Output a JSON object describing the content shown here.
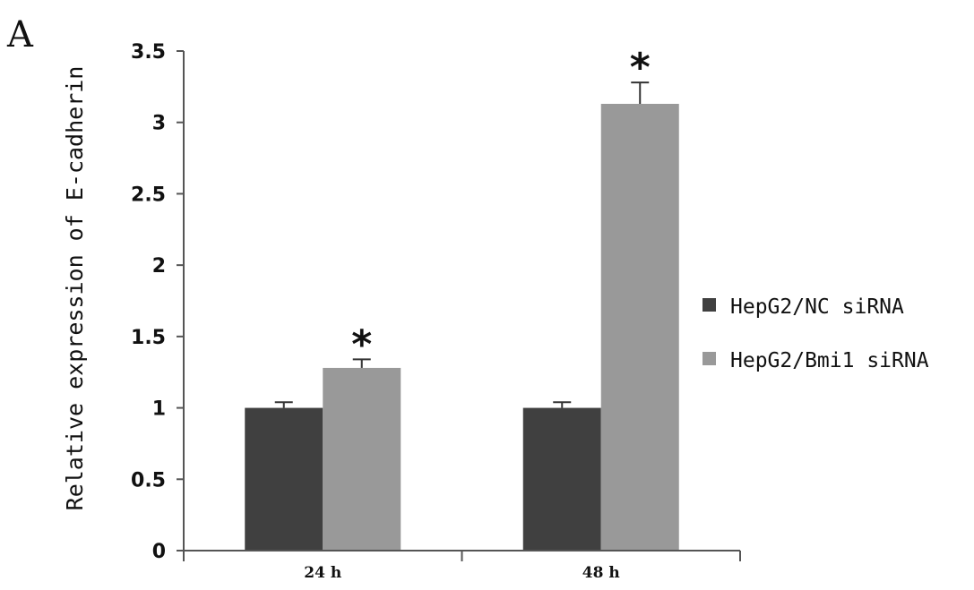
{
  "panel_label": "A",
  "chart_data": {
    "type": "bar",
    "title": "",
    "xlabel": "",
    "ylabel": "Relative expression of E-cadherin",
    "ylim": [
      0,
      3.5
    ],
    "yticks": [
      0,
      0.5,
      1,
      1.5,
      2,
      2.5,
      3,
      3.5
    ],
    "ytick_labels": [
      "0",
      "0.5",
      "1",
      "1.5",
      "2",
      "2.5",
      "3",
      "3.5"
    ],
    "categories": [
      "24 h",
      "48 h"
    ],
    "series": [
      {
        "name": "HepG2/NC siRNA",
        "color": "#404040",
        "values": [
          1.0,
          1.0
        ],
        "errors": [
          0.04,
          0.04
        ]
      },
      {
        "name": "HepG2/Bmi1 siRNA",
        "color": "#999999",
        "values": [
          1.28,
          3.13
        ],
        "errors": [
          0.06,
          0.15
        ]
      }
    ],
    "annotations": [
      {
        "text": "*",
        "category": "24 h",
        "series": "HepG2/Bmi1 siRNA"
      },
      {
        "text": "*",
        "category": "48 h",
        "series": "HepG2/Bmi1 siRNA"
      }
    ],
    "grid": false,
    "legend_position": "right"
  }
}
